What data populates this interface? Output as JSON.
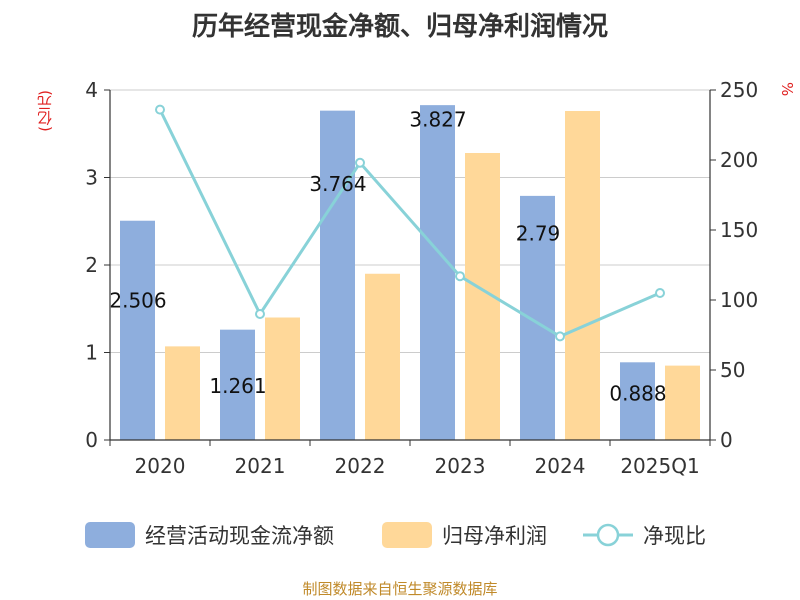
{
  "title": "历年经营现金净额、归母净利润情况",
  "source": "制图数据来自恒生聚源数据库",
  "colors": {
    "bar1": "#8eaedd",
    "bar2": "#ffd899",
    "line": "#88d2d8",
    "axis": "#333333",
    "grid": "#cccccc",
    "unit": "#e02020"
  },
  "chart_data": {
    "type": "bar",
    "categories": [
      "2020",
      "2021",
      "2022",
      "2023",
      "2024",
      "2025Q1"
    ],
    "ylabel_left": "(亿元)",
    "ylabel_right": "%",
    "ylim_left": [
      0,
      4
    ],
    "yticks_left": [
      0,
      1,
      2,
      3,
      4
    ],
    "ylim_right": [
      0,
      250
    ],
    "yticks_right": [
      0,
      50,
      100,
      150,
      200,
      250
    ],
    "grid": true,
    "legend_position": "bottom",
    "series": [
      {
        "name": "经营活动现金流净额",
        "type": "bar",
        "axis": "left",
        "values": [
          2.506,
          1.261,
          3.764,
          3.827,
          2.79,
          0.888
        ],
        "labels": [
          "2.506",
          "1.261",
          "3.764",
          "3.827",
          "2.79",
          "0.888"
        ]
      },
      {
        "name": "归母净利润",
        "type": "bar",
        "axis": "left",
        "values": [
          1.07,
          1.4,
          1.9,
          3.28,
          3.76,
          0.85
        ]
      },
      {
        "name": "净现比",
        "type": "line",
        "axis": "right",
        "values": [
          236,
          90,
          198,
          117,
          74,
          105
        ]
      }
    ]
  }
}
